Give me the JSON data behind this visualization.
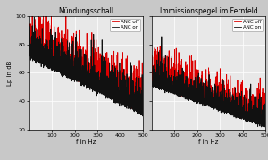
{
  "title_left": "Mündungsschall",
  "title_right": "Immissionspegel im Fernfeld",
  "xlabel": "f in Hz",
  "ylabel": "Lp in dB",
  "xlim": [
    0,
    500
  ],
  "ylim": [
    20,
    100
  ],
  "xticks": [
    100,
    200,
    300,
    400,
    500
  ],
  "yticks": [
    20,
    40,
    60,
    80,
    100
  ],
  "legend_off": "ANC off",
  "legend_on": "ANC on",
  "color_off": "#dd0000",
  "color_on": "#111111",
  "bg_color": "#c8c8c8",
  "axes_bg": "#e8e8e8",
  "lw": 0.6
}
